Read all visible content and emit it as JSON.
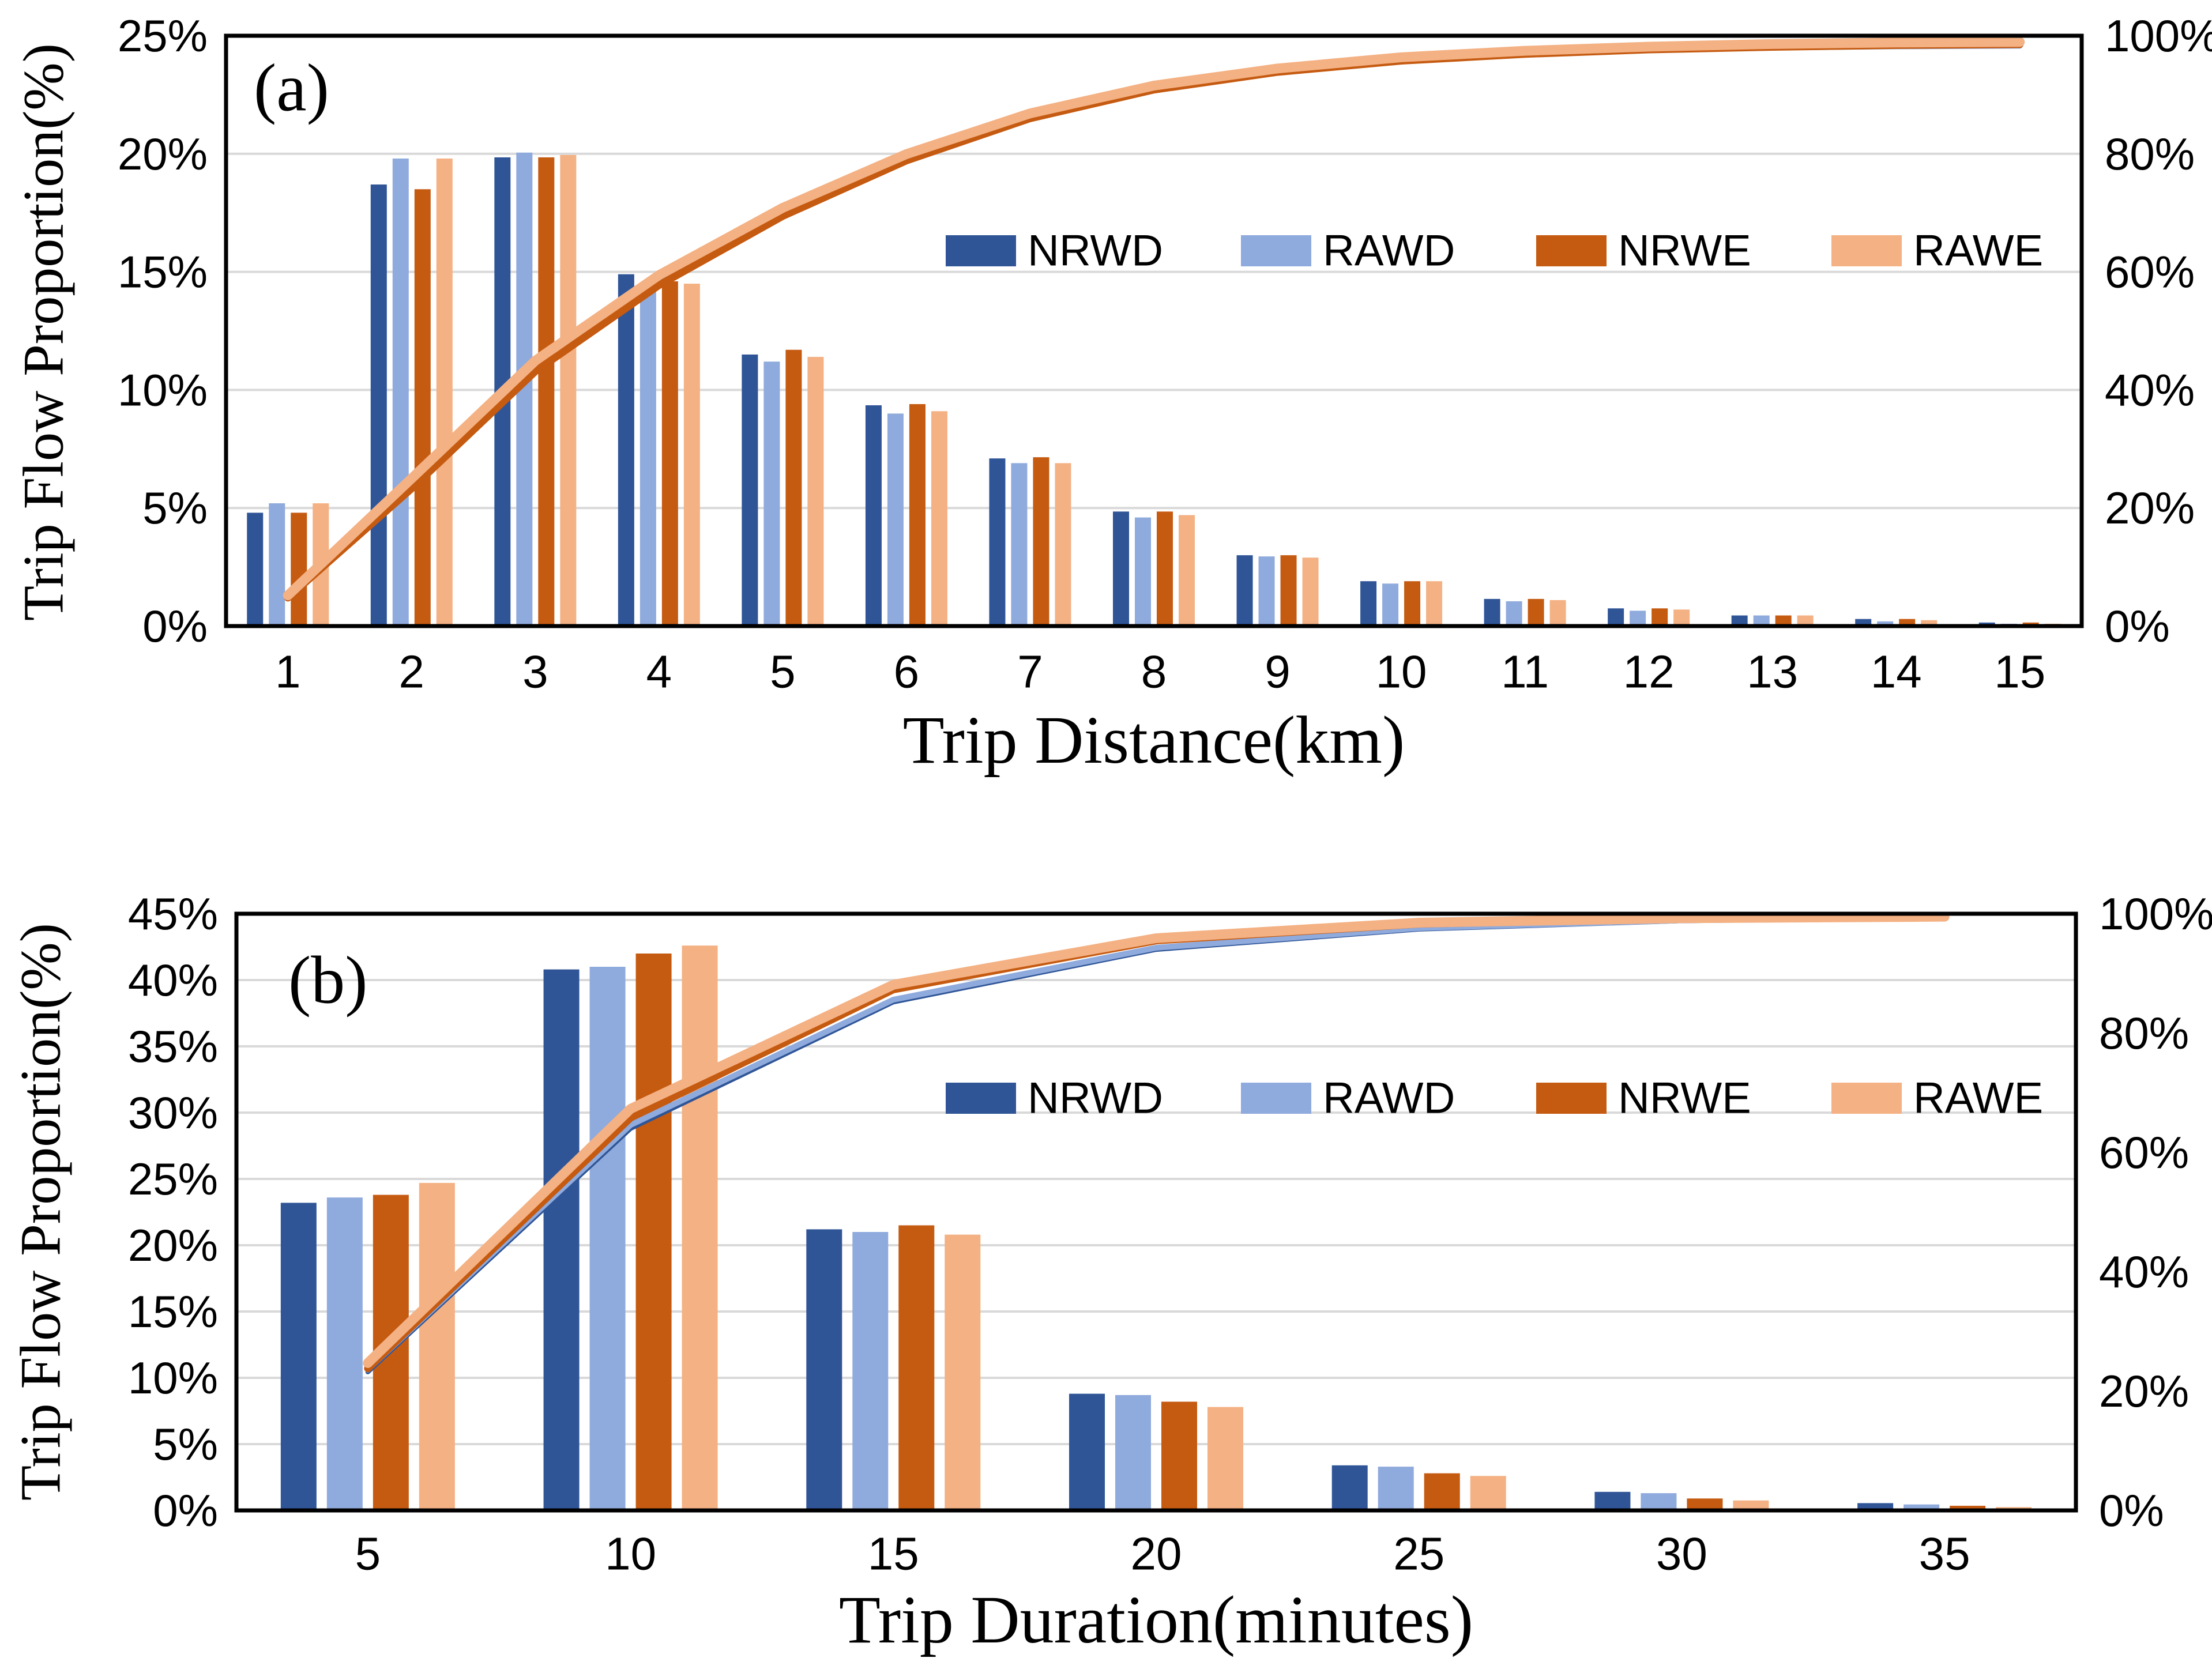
{
  "page": {
    "background": "#FFFFFF"
  },
  "colors": {
    "NRWD": "#2F5597",
    "RAWD": "#8FAADC",
    "NRWE": "#C55A11",
    "RAWE": "#F4B183",
    "gridline": "#D9D9D9",
    "frame": "#000000",
    "text": "#000000"
  },
  "chart_data": [
    {
      "type": "bar+line",
      "panel_label": "(a)",
      "xlabel": "Trip Distance(km)",
      "ylabel": "Trip Flow Proportion(%)",
      "categories": [
        1,
        2,
        3,
        4,
        5,
        6,
        7,
        8,
        9,
        10,
        11,
        12,
        13,
        14,
        15
      ],
      "x_tick_labels": [
        "1",
        "2",
        "3",
        "4",
        "5",
        "6",
        "7",
        "8",
        "9",
        "10",
        "11",
        "12",
        "13",
        "14",
        "15"
      ],
      "left_axis": {
        "min": 0,
        "max": 25,
        "step": 5,
        "tick_labels": [
          "0%",
          "5%",
          "10%",
          "15%",
          "20%",
          "25%"
        ]
      },
      "right_axis": {
        "min": 0,
        "max": 100,
        "step": 20,
        "tick_labels": [
          "0%",
          "20%",
          "40%",
          "60%",
          "80%",
          "100%"
        ]
      },
      "grid": true,
      "legend_position": "inside-upper-middle",
      "legend": [
        "NRWD",
        "RAWD",
        "NRWE",
        "RAWE"
      ],
      "bar_series": [
        {
          "name": "NRWD",
          "values": [
            4.8,
            18.7,
            19.85,
            14.9,
            11.5,
            9.35,
            7.1,
            4.85,
            3.0,
            1.9,
            1.15,
            0.75,
            0.45,
            0.3,
            0.15
          ]
        },
        {
          "name": "RAWD",
          "values": [
            5.2,
            19.8,
            20.05,
            14.35,
            11.2,
            9.0,
            6.9,
            4.6,
            2.95,
            1.8,
            1.05,
            0.65,
            0.45,
            0.2,
            0.1
          ]
        },
        {
          "name": "NRWE",
          "values": [
            4.8,
            18.5,
            19.85,
            14.6,
            11.7,
            9.4,
            7.15,
            4.85,
            3.0,
            1.9,
            1.15,
            0.75,
            0.45,
            0.3,
            0.15
          ]
        },
        {
          "name": "RAWE",
          "values": [
            5.2,
            19.8,
            19.95,
            14.5,
            11.4,
            9.1,
            6.9,
            4.7,
            2.9,
            1.9,
            1.1,
            0.7,
            0.45,
            0.25,
            0.1
          ]
        }
      ],
      "line_series": [
        {
          "name": "NRWD",
          "axis": "right",
          "cumulative": [
            4.8,
            23.5,
            43.35,
            58.25,
            69.75,
            79.1,
            86.2,
            91.05,
            94.05,
            95.95,
            97.1,
            97.85,
            98.3,
            98.6,
            98.75
          ]
        },
        {
          "name": "RAWD",
          "axis": "right",
          "cumulative": [
            5.2,
            25.0,
            45.05,
            59.4,
            70.6,
            79.6,
            86.5,
            91.1,
            94.05,
            95.85,
            96.9,
            97.55,
            98.0,
            98.2,
            98.3
          ]
        },
        {
          "name": "NRWE",
          "axis": "right",
          "cumulative": [
            4.8,
            23.3,
            43.15,
            57.75,
            69.45,
            78.85,
            86.0,
            90.85,
            93.85,
            95.75,
            96.9,
            97.65,
            98.1,
            98.4,
            98.55
          ]
        },
        {
          "name": "RAWE",
          "axis": "right",
          "cumulative": [
            5.2,
            25.0,
            44.95,
            59.45,
            70.85,
            79.95,
            86.85,
            91.55,
            94.45,
            96.35,
            97.45,
            98.15,
            98.6,
            98.85,
            98.95
          ]
        }
      ]
    },
    {
      "type": "bar+line",
      "panel_label": "(b)",
      "xlabel": "Trip Duration(minutes)",
      "ylabel": "Trip Flow Proportion(%)",
      "categories": [
        5,
        10,
        15,
        20,
        25,
        30,
        35
      ],
      "x_tick_labels": [
        "5",
        "10",
        "15",
        "20",
        "25",
        "30",
        "35"
      ],
      "left_axis": {
        "min": 0,
        "max": 45,
        "step": 5,
        "tick_labels": [
          "0%",
          "5%",
          "10%",
          "15%",
          "20%",
          "25%",
          "30%",
          "35%",
          "40%",
          "45%"
        ]
      },
      "right_axis": {
        "min": 0,
        "max": 100,
        "step": 20,
        "tick_labels": [
          "0%",
          "20%",
          "40%",
          "60%",
          "80%",
          "100%"
        ]
      },
      "grid": true,
      "legend_position": "inside-upper-middle",
      "legend": [
        "NRWD",
        "RAWD",
        "NRWE",
        "RAWE"
      ],
      "bar_series": [
        {
          "name": "NRWD",
          "values": [
            23.2,
            40.8,
            21.2,
            8.8,
            3.4,
            1.4,
            0.55
          ]
        },
        {
          "name": "RAWD",
          "values": [
            23.6,
            41.0,
            21.0,
            8.7,
            3.3,
            1.3,
            0.45
          ]
        },
        {
          "name": "NRWE",
          "values": [
            23.8,
            42.0,
            21.5,
            8.2,
            2.8,
            0.9,
            0.35
          ]
        },
        {
          "name": "RAWE",
          "values": [
            24.7,
            42.6,
            20.8,
            7.8,
            2.6,
            0.75,
            0.25
          ]
        }
      ],
      "line_series": [
        {
          "name": "NRWD",
          "axis": "right",
          "cumulative": [
            23.2,
            64.0,
            85.2,
            94.0,
            97.4,
            98.8,
            99.35
          ]
        },
        {
          "name": "RAWD",
          "axis": "right",
          "cumulative": [
            23.6,
            64.6,
            85.6,
            94.3,
            97.6,
            98.9,
            99.35
          ]
        },
        {
          "name": "NRWE",
          "axis": "right",
          "cumulative": [
            23.8,
            65.8,
            87.3,
            95.5,
            98.3,
            99.2,
            99.55
          ]
        },
        {
          "name": "RAWE",
          "axis": "right",
          "cumulative": [
            24.7,
            67.3,
            88.1,
            95.9,
            98.5,
            99.25,
            99.5
          ]
        }
      ]
    }
  ]
}
